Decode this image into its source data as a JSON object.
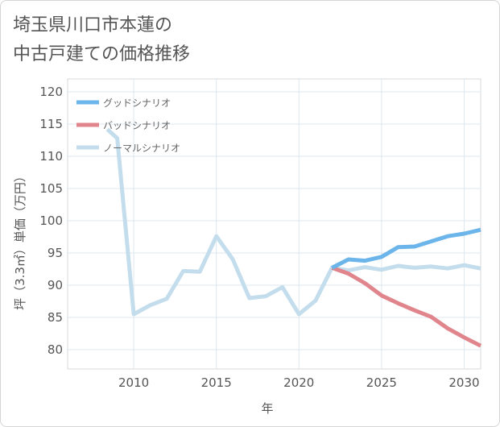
{
  "chart_data": {
    "type": "line",
    "title_lines": [
      "埼玉県川口市本蓮の",
      "中古戸建ての価格推移"
    ],
    "xlabel": "年",
    "ylabel": "坪（3.3㎡）単価（万円）",
    "xlim": [
      2006,
      2031
    ],
    "ylim": [
      77,
      122
    ],
    "x_ticks": [
      2010,
      2015,
      2020,
      2025,
      2030
    ],
    "y_ticks": [
      80,
      85,
      90,
      95,
      100,
      105,
      110,
      115,
      120
    ],
    "grid": true,
    "legend_position": "top-left",
    "series": [
      {
        "name": "グッドシナリオ",
        "color": "#6bb5ea",
        "x": [
          2022,
          2023,
          2024,
          2025,
          2026,
          2027,
          2028,
          2029,
          2030,
          2031
        ],
        "y": [
          92.7,
          94.0,
          93.8,
          94.4,
          95.9,
          96.0,
          96.8,
          97.6,
          98.0,
          98.6
        ]
      },
      {
        "name": "バッドシナリオ",
        "color": "#e0858c",
        "x": [
          2022,
          2023,
          2024,
          2025,
          2026,
          2027,
          2028,
          2029,
          2030,
          2031
        ],
        "y": [
          92.7,
          91.8,
          90.3,
          88.4,
          87.2,
          86.1,
          85.1,
          83.3,
          81.9,
          80.6
        ]
      },
      {
        "name": "ノーマルシナリオ",
        "color": "#c3dded",
        "x": [
          2008.4,
          2009,
          2010,
          2011,
          2012,
          2013,
          2014,
          2015,
          2016,
          2017,
          2018,
          2019,
          2020,
          2021,
          2022,
          2023,
          2024,
          2025,
          2026,
          2027,
          2028,
          2029,
          2030,
          2031
        ],
        "y": [
          114.2,
          112.8,
          85.5,
          86.9,
          87.9,
          92.2,
          92.1,
          97.6,
          94.0,
          88.0,
          88.3,
          89.7,
          85.5,
          87.6,
          92.7,
          92.3,
          92.8,
          92.4,
          93.0,
          92.7,
          92.9,
          92.6,
          93.1,
          92.6
        ]
      }
    ]
  }
}
